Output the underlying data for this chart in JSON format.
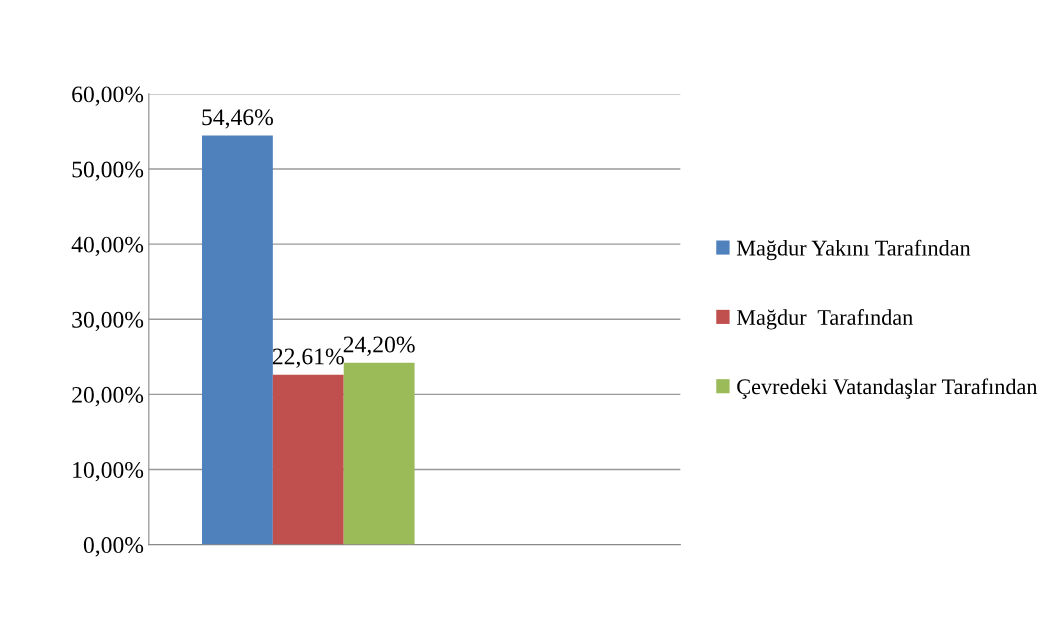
{
  "chart_data": {
    "type": "bar",
    "categories": [
      null
    ],
    "series": [
      {
        "name": "Mağdur Yakını Tarafından",
        "color": "#4f81bd",
        "values": [
          54.46
        ],
        "value_labels": [
          "54,46%"
        ]
      },
      {
        "name": "Mağdur  Tarafından",
        "color": "#c0504d",
        "values": [
          22.61
        ],
        "value_labels": [
          "22,61%"
        ]
      },
      {
        "name": "Çevredeki Vatandaşlar Tarafından",
        "color": "#9bbb59",
        "values": [
          24.2
        ],
        "value_labels": [
          "24,20%"
        ]
      }
    ],
    "ylim": [
      0,
      60
    ],
    "yticks": [
      {
        "value": 0,
        "label": "0,00%"
      },
      {
        "value": 10,
        "label": "10,00%"
      },
      {
        "value": 20,
        "label": "20,00%"
      },
      {
        "value": 30,
        "label": "30,00%"
      },
      {
        "value": 40,
        "label": "40,00%"
      },
      {
        "value": 50,
        "label": "50,00%"
      },
      {
        "value": 60,
        "label": "60,00%"
      }
    ],
    "grid": "y",
    "legend": "right"
  }
}
